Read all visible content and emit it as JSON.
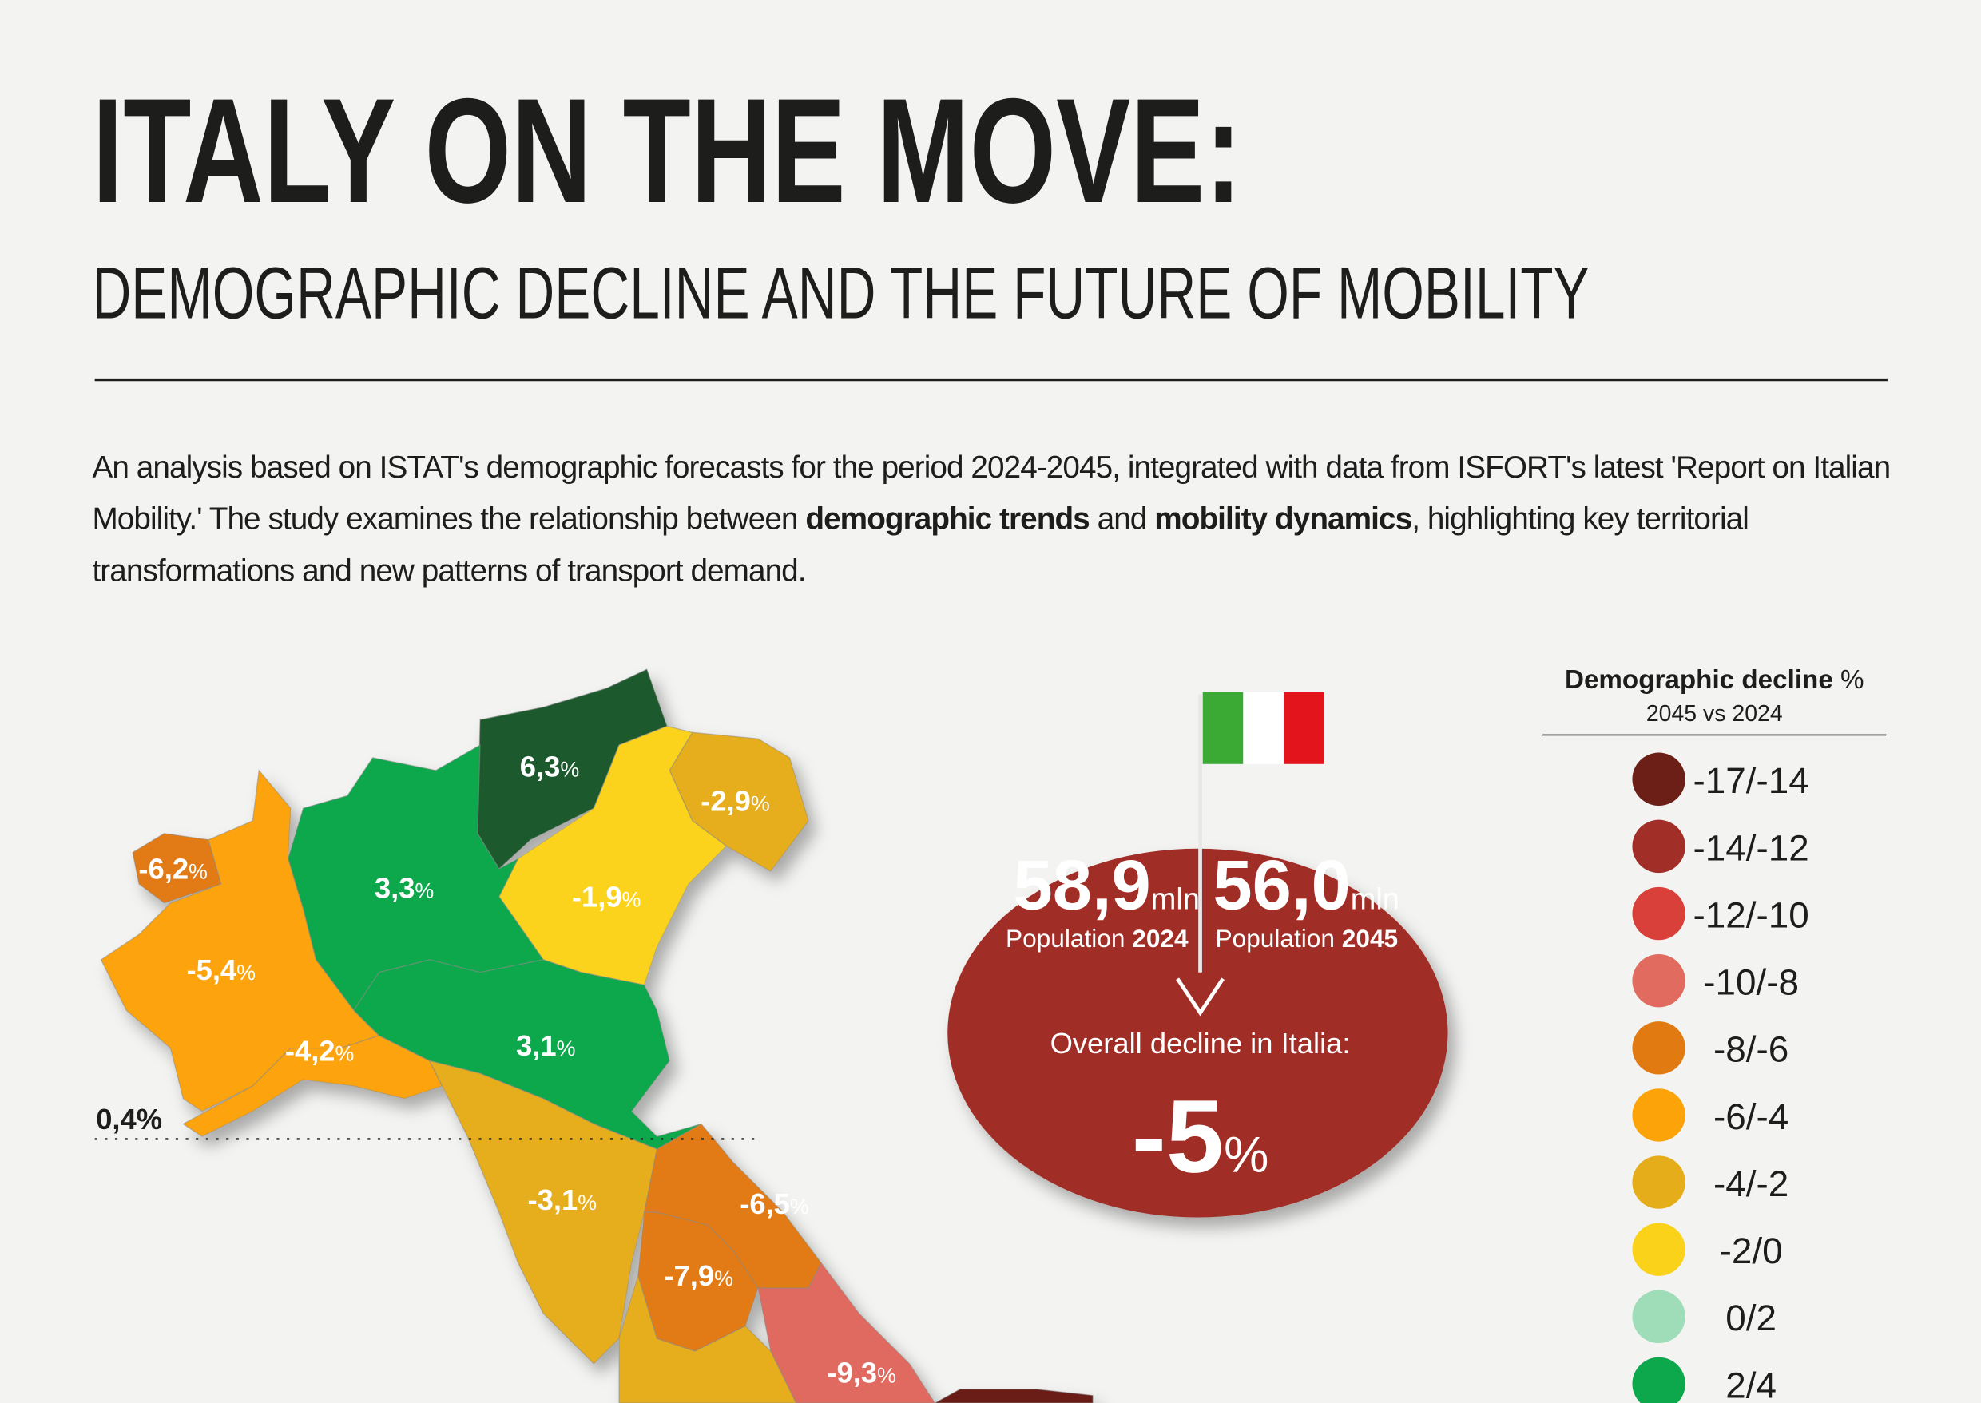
{
  "header": {
    "title": "ITALY ON THE MOVE:",
    "subtitle": "DEMOGRAPHIC DECLINE AND THE FUTURE OF MOBILITY"
  },
  "intro": {
    "parts": [
      {
        "text": "An analysis based on ISTAT's demographic forecasts for the period 2024-2045, integrated with data from ISFORT's latest 'Report on Italian Mobility.' The study examines the relationship between ",
        "bold": false
      },
      {
        "text": "demographic trends",
        "bold": true
      },
      {
        "text": " and ",
        "bold": false
      },
      {
        "text": "mobility dynamics",
        "bold": true
      },
      {
        "text": ", highlighting key territorial transformations and new patterns of transport demand.",
        "bold": false
      }
    ]
  },
  "map": {
    "regions": [
      {
        "label": "6,3",
        "unit": "%",
        "color": "#1f5a2d"
      },
      {
        "label": "-2,9",
        "unit": "%",
        "color": "#e6ad1a"
      },
      {
        "label": "-1,9",
        "unit": "%",
        "color": "#fbd21a"
      },
      {
        "label": "3,3",
        "unit": "%",
        "color": "#0ea84c"
      },
      {
        "label": "-6,2",
        "unit": "%",
        "color": "#e27a12"
      },
      {
        "label": "-5,4",
        "unit": "%",
        "color": "#fca30a"
      },
      {
        "label": "-4,2",
        "unit": "%",
        "color": "#fca30a"
      },
      {
        "label": "3,1",
        "unit": "%",
        "color": "#0ea84c"
      },
      {
        "label": "-3,1",
        "unit": "%",
        "color": "#e6ad1a"
      },
      {
        "label": "-6,5",
        "unit": "%",
        "color": "#e27a12"
      },
      {
        "label": "-7,9",
        "unit": "%",
        "color": "#e27a12"
      },
      {
        "label": "-9,3",
        "unit": "%",
        "color": "#e06b5e"
      },
      {
        "label": null,
        "unit": null,
        "color": "#e6ad1a"
      },
      {
        "label": null,
        "unit": null,
        "color": "#6b1f17"
      }
    ],
    "annotation": "0,4%"
  },
  "summary": {
    "pop_2024": {
      "value": "58,9",
      "unit": "mln",
      "caption": "Population",
      "year": "2024"
    },
    "pop_2045": {
      "value": "56,0",
      "unit": "mln",
      "caption": "Population",
      "year": "2045"
    },
    "decline_label": "Overall decline in Italia:",
    "decline_value": "-5",
    "decline_unit": "%",
    "color": "#a12e27"
  },
  "legend": {
    "title": "Demographic decline",
    "title_unit": "%",
    "subtitle": "2045 vs 2024",
    "items": [
      {
        "label": "-17/-14",
        "color": "#6b1f17"
      },
      {
        "label": "-14/-12",
        "color": "#a12e27"
      },
      {
        "label": "-12/-10",
        "color": "#d9403a"
      },
      {
        "label": "-10/-8",
        "color": "#e06b5e"
      },
      {
        "label": "-8/-6",
        "color": "#e27a12"
      },
      {
        "label": "-6/-4",
        "color": "#fca30a"
      },
      {
        "label": "-4/-2",
        "color": "#e6ad1a"
      },
      {
        "label": "-2/0",
        "color": "#fbd21a"
      },
      {
        "label": "0/2",
        "color": "#9fdcb8"
      },
      {
        "label": "2/4",
        "color": "#0ea84c"
      }
    ]
  }
}
